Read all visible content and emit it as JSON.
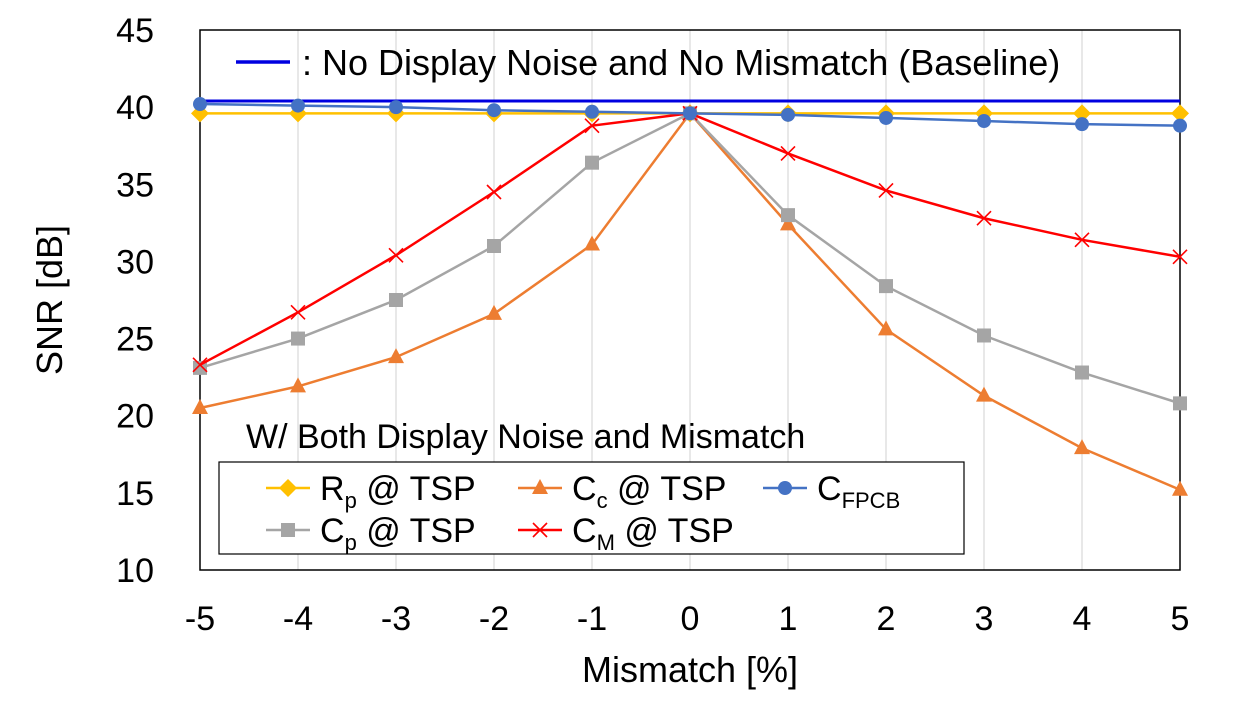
{
  "chart_data": {
    "type": "line",
    "xlabel": "Mismatch [%]",
    "ylabel": "SNR [dB]",
    "xlim": [
      -5,
      5
    ],
    "ylim": [
      10,
      45
    ],
    "x_ticks": [
      "-5",
      "-4",
      "-3",
      "-2",
      "-1",
      "0",
      "1",
      "2",
      "3",
      "4",
      "5"
    ],
    "y_ticks": [
      "10",
      "15",
      "20",
      "25",
      "30",
      "35",
      "40",
      "45"
    ],
    "grid": "vertical",
    "x": [
      -5,
      -4,
      -3,
      -2,
      -1,
      0,
      1,
      2,
      3,
      4,
      5
    ],
    "baseline": {
      "value": 40.4,
      "label": ": No Display Noise and No Mismatch (Baseline)",
      "color": "#0000e0"
    },
    "legend_title": "W/ Both Display Noise and Mismatch",
    "legend_placement": "lower-left",
    "series": [
      {
        "key": "rp",
        "name_main": "R",
        "name_sub": "p",
        "name_suffix": " @ TSP",
        "color": "#ffc000",
        "marker": "diamond",
        "values": [
          39.6,
          39.6,
          39.6,
          39.6,
          39.6,
          39.6,
          39.6,
          39.6,
          39.6,
          39.6,
          39.6
        ]
      },
      {
        "key": "cc",
        "name_main": "C",
        "name_sub": "c",
        "name_suffix": " @ TSP",
        "color": "#ed7d31",
        "marker": "triangle",
        "values": [
          20.5,
          21.9,
          23.8,
          26.6,
          31.1,
          39.6,
          32.4,
          25.6,
          21.3,
          17.9,
          15.2
        ]
      },
      {
        "key": "cfpcb",
        "name_main": "C",
        "name_sub": "FPCB",
        "name_suffix": "",
        "color": "#4472c4",
        "marker": "circle",
        "values": [
          40.2,
          40.1,
          40.0,
          39.8,
          39.7,
          39.6,
          39.5,
          39.3,
          39.1,
          38.9,
          38.8
        ]
      },
      {
        "key": "cp",
        "name_main": "C",
        "name_sub": "p",
        "name_suffix": " @ TSP",
        "color": "#a5a5a5",
        "marker": "square",
        "values": [
          23.1,
          25.0,
          27.5,
          31.0,
          36.4,
          39.6,
          33.0,
          28.4,
          25.2,
          22.8,
          20.8
        ]
      },
      {
        "key": "cm",
        "name_main": "C",
        "name_sub": "M",
        "name_suffix": " @ TSP",
        "color": "#ff0000",
        "marker": "x",
        "values": [
          23.3,
          26.7,
          30.4,
          34.5,
          38.8,
          39.6,
          37.0,
          34.6,
          32.8,
          31.4,
          30.3
        ]
      }
    ]
  }
}
